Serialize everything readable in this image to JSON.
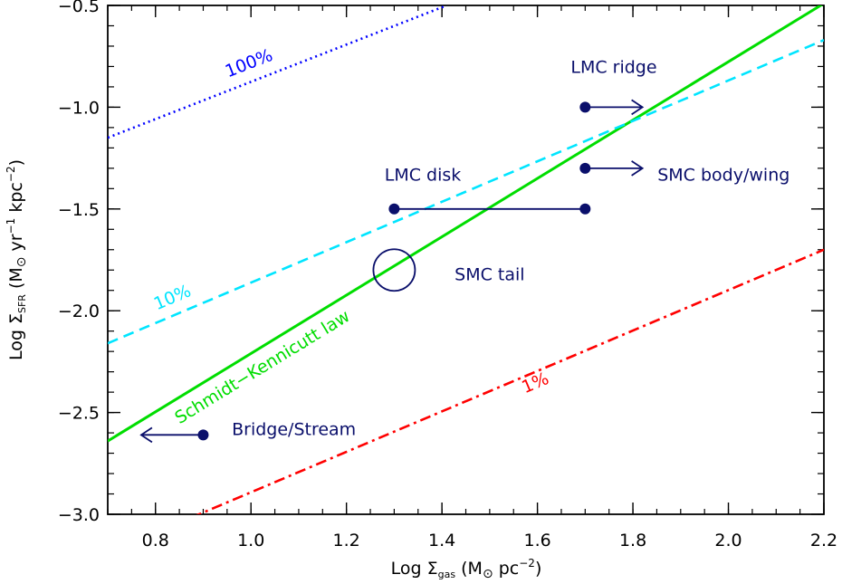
{
  "chart_data": {
    "type": "line",
    "xlabel": "Log Σ_gas (M_⊙ pc⁻²)",
    "ylabel": "Log Σ_SFR (M_⊙ yr⁻¹ kpc⁻²)",
    "xlabel_parts": {
      "pre": "Log Σ",
      "sub": "gas",
      "post": " (M",
      "sun": "⊙",
      "post2": " pc",
      "sup": "−2",
      "close": ")"
    },
    "ylabel_parts": {
      "pre": "Log Σ",
      "sub": "SFR",
      "post": " (M",
      "sun": "⊙",
      "mid": " yr",
      "sup1": "−1",
      "mid2": " kpc",
      "sup2": "−2",
      "close": ")"
    },
    "xlim": [
      0.7,
      2.2
    ],
    "ylim": [
      -3.0,
      -0.5
    ],
    "x_ticks": [
      0.8,
      1.0,
      1.2,
      1.4,
      1.6,
      1.8,
      2.0,
      2.2
    ],
    "x_tick_labels": [
      "0.8",
      "1.0",
      "1.2",
      "1.4",
      "1.6",
      "1.8",
      "2.0",
      "2.2"
    ],
    "y_ticks": [
      -3.0,
      -2.5,
      -2.0,
      -1.5,
      -1.0,
      -0.5
    ],
    "y_tick_labels": [
      "−3.0",
      "−2.5",
      "−2.0",
      "−1.5",
      "−1.0",
      "−0.5"
    ],
    "x_minor_step": 0.05,
    "y_minor_step": 0.1,
    "grid": false,
    "lines": [
      {
        "id": "schmidt",
        "label": "Schmidt−Kennicutt law",
        "color": "#00dd00",
        "style": "solid",
        "x": [
          0.7,
          2.2
        ],
        "y": [
          -2.64,
          -0.49
        ],
        "label_pos": {
          "x": 1.03,
          "y": -2.3
        }
      },
      {
        "id": "eff10",
        "label": "10%",
        "color": "#00e5ff",
        "style": "dashed",
        "x": [
          0.7,
          2.2
        ],
        "y": [
          -2.16,
          -0.67
        ],
        "label_pos": {
          "x": 0.84,
          "y": -1.96
        }
      },
      {
        "id": "eff1",
        "label": "1%",
        "color": "#ff0000",
        "style": "dashdot",
        "x": [
          0.7,
          2.2
        ],
        "y": [
          -3.19,
          -1.7
        ],
        "label_pos": {
          "x": 1.6,
          "y": -2.38
        }
      },
      {
        "id": "eff100",
        "label": "100%",
        "color": "#0000ff",
        "style": "dotted",
        "x": [
          0.7,
          1.41
        ],
        "y": [
          -1.15,
          -0.5
        ],
        "label_pos": {
          "x": 1.0,
          "y": -0.81
        }
      }
    ],
    "points": [
      {
        "id": "lmc-ridge",
        "label": "LMC ridge",
        "x": 1.7,
        "y": -1.0,
        "arrow": "right",
        "arrow_to": 1.82,
        "label_pos": {
          "x": 1.76,
          "y": -0.8
        }
      },
      {
        "id": "smc-body",
        "label": "SMC body/wing",
        "x": 1.7,
        "y": -1.3,
        "arrow": "right",
        "arrow_to": 1.82,
        "label_pos": {
          "x": 1.99,
          "y": -1.33
        }
      },
      {
        "id": "bridge",
        "label": "Bridge/Stream",
        "x": 0.9,
        "y": -2.61,
        "arrow": "left",
        "arrow_to": 0.77,
        "label_pos": {
          "x": 1.09,
          "y": -2.58
        }
      }
    ],
    "segments": [
      {
        "id": "lmc-disk",
        "label": "LMC disk",
        "x": [
          1.3,
          1.7
        ],
        "y": -1.5,
        "label_pos": {
          "x": 1.36,
          "y": -1.33
        }
      }
    ],
    "circles": [
      {
        "id": "smc-tail",
        "label": "SMC tail",
        "x": 1.3,
        "y": -1.8,
        "label_pos": {
          "x": 1.5,
          "y": -1.82
        }
      }
    ],
    "marker_color": "#0a0f6b"
  }
}
